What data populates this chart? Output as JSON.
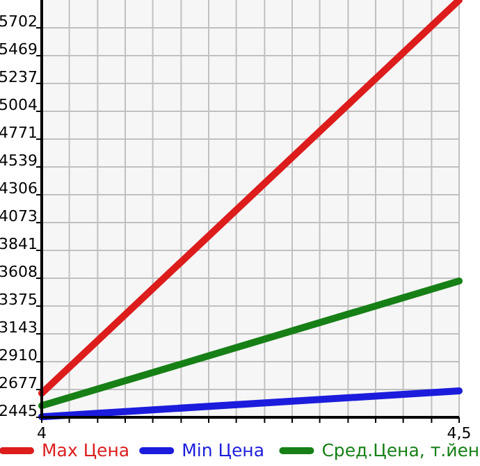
{
  "chart_data": {
    "type": "line",
    "x": [
      4,
      4.5
    ],
    "series": [
      {
        "name": "Max Цена",
        "color": "#dd1c1c",
        "values": [
          2646,
          5935
        ]
      },
      {
        "name": "Min Цена",
        "color": "#1c1cdd",
        "values": [
          2450,
          2666
        ]
      },
      {
        "name": "Сред.Цена, т.йен",
        "color": "#168016",
        "values": [
          2542,
          3585
        ]
      }
    ],
    "xlim": [
      4,
      4.5
    ],
    "xticks": [
      {
        "value": 4,
        "label": "4"
      },
      {
        "value": 4.033,
        "label": null
      },
      {
        "value": 4.067,
        "label": null
      },
      {
        "value": 4.1,
        "label": null
      },
      {
        "value": 4.133,
        "label": null
      },
      {
        "value": 4.167,
        "label": null
      },
      {
        "value": 4.2,
        "label": null
      },
      {
        "value": 4.233,
        "label": null
      },
      {
        "value": 4.267,
        "label": null
      },
      {
        "value": 4.3,
        "label": null
      },
      {
        "value": 4.333,
        "label": null
      },
      {
        "value": 4.367,
        "label": null
      },
      {
        "value": 4.4,
        "label": null
      },
      {
        "value": 4.433,
        "label": null
      },
      {
        "value": 4.467,
        "label": null
      },
      {
        "value": 4.5,
        "label": "4,5"
      }
    ],
    "ylim": [
      2445,
      5935
    ],
    "yticks": [
      2445,
      2677,
      2910,
      3143,
      3375,
      3608,
      3841,
      4073,
      4306,
      4539,
      4771,
      5004,
      5237,
      5469,
      5702
    ],
    "grid": true,
    "legend": "bottom",
    "marker": "none",
    "line_style": "solid"
  }
}
